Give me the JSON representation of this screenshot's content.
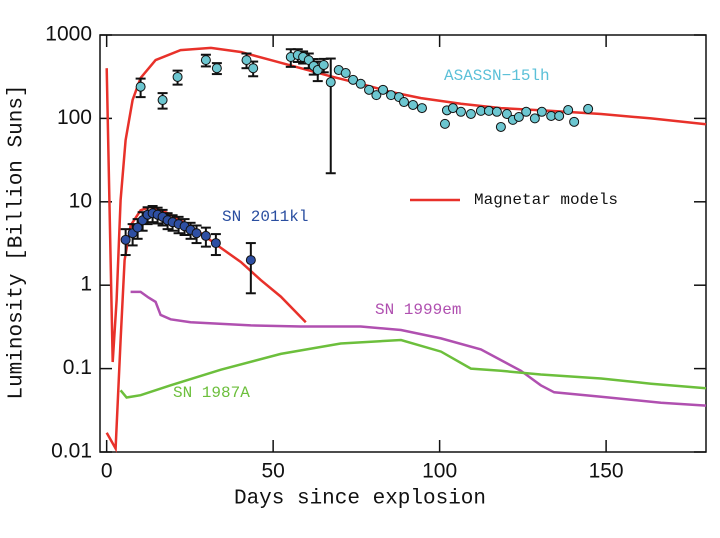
{
  "chart_data": {
    "type": "line",
    "x_label": "Days since explosion",
    "y_label": "Luminosity [Billion Suns]",
    "xlim": [
      -2,
      180
    ],
    "xticks": [
      0,
      50,
      100,
      150
    ],
    "ylim": [
      0.01,
      1000
    ],
    "yticks": [
      1000,
      100,
      10,
      1,
      0.1,
      0.01
    ],
    "log_y": true,
    "series": [
      {
        "name": "Magnetar models",
        "type": "line",
        "color": "#e8312a",
        "x": [
          0,
          1.8,
          3,
          4.2,
          5.7,
          7.8,
          10.2,
          14.7,
          22.2,
          31.3,
          40.3,
          49.3,
          58.3,
          67.3,
          76.3,
          85.4,
          94.4,
          106.4,
          118.4,
          133.5,
          148.5,
          163.5,
          180,
          null,
          0,
          2.7,
          4.2,
          5.4,
          7.2,
          10.2,
          13.2,
          17.7,
          22.2,
          28.3,
          34.3,
          40.3,
          46.3,
          52.3,
          59.8
        ],
        "values": [
          400,
          0.12,
          0.66,
          10.5,
          55,
          166,
          305,
          500,
          660,
          700,
          625,
          500,
          400,
          320,
          260,
          207,
          175,
          150,
          133,
          123,
          113,
          100,
          85,
          null,
          0.017,
          0.011,
          0.22,
          2.0,
          5.2,
          7.9,
          8.7,
          7.5,
          6.0,
          4.2,
          2.8,
          1.9,
          1.15,
          0.73,
          0.36
        ]
      },
      {
        "name": "ASASSN−15lh",
        "type": "scatter",
        "color": "#6cc6d0",
        "label_color": "#5bc0d8",
        "x": [
          10.2,
          16.8,
          21.3,
          29.8,
          33.1,
          42,
          44,
          55.3,
          57.4,
          59,
          60.7,
          62.2,
          63.4,
          65.2,
          67.3,
          69.7,
          71.8,
          74,
          76.3,
          78.8,
          81,
          83,
          85.4,
          87.8,
          89.3,
          92,
          94.7,
          101.6,
          102.2,
          104,
          106.4,
          109.4,
          112.4,
          114.8,
          117.2,
          118.4,
          120.2,
          122,
          123.8,
          126,
          128.6,
          130.7,
          133.5,
          135.9,
          138.6,
          140.4,
          144.6
        ],
        "values": [
          240,
          166,
          314,
          500,
          400,
          500,
          400,
          545,
          575,
          545,
          500,
          425,
          380,
          437,
          272,
          380,
          350,
          290,
          260,
          220,
          190,
          220,
          190,
          180,
          157,
          145,
          133,
          86,
          125,
          133,
          120,
          113,
          123,
          123,
          120,
          79,
          113,
          96,
          104,
          120,
          100,
          120,
          107,
          107,
          126,
          91,
          130
        ],
        "errors": [
          60,
          35,
          60,
          80,
          60,
          100,
          80,
          130,
          100,
          90,
          100,
          90,
          100,
          80,
          250,
          null,
          null,
          null,
          null,
          null,
          null,
          null,
          null,
          null,
          null,
          null,
          null,
          null,
          null,
          null,
          null,
          null,
          null,
          null,
          null,
          null,
          null,
          null,
          null,
          null,
          null,
          null,
          null,
          null,
          null,
          null,
          null
        ]
      },
      {
        "name": "SN 2011kl",
        "type": "scatter",
        "color": "#2e4fa3",
        "label_color": "#2a4ea0",
        "x": [
          5.7,
          7.8,
          9.3,
          10.8,
          12.3,
          13.8,
          15.3,
          16.8,
          18.3,
          19.8,
          21.6,
          23.4,
          25.2,
          27,
          29.8,
          32.8,
          43.3
        ],
        "values": [
          3.5,
          4.2,
          4.9,
          6.0,
          7.0,
          7.3,
          7.0,
          6.6,
          6.0,
          5.7,
          5.4,
          5.1,
          4.6,
          4.2,
          3.9,
          3.2,
          2.0
        ],
        "errors": [
          1.2,
          1.2,
          1.3,
          1.5,
          1.6,
          1.6,
          1.5,
          1.4,
          1.3,
          1.2,
          1.2,
          1.1,
          1.0,
          1.0,
          1.0,
          0.9,
          1.2
        ]
      },
      {
        "name": "SN 1999em",
        "type": "line",
        "color": "#b050b0",
        "x": [
          7.2,
          10.2,
          12.6,
          14.7,
          16.2,
          19.2,
          25.2,
          43.3,
          58.3,
          76.3,
          88.4,
          100.4,
          112.4,
          124.4,
          130.4,
          134.4,
          148.5,
          166.5,
          180
        ],
        "values": [
          0.83,
          0.83,
          0.71,
          0.63,
          0.44,
          0.39,
          0.36,
          0.33,
          0.32,
          0.32,
          0.29,
          0.23,
          0.17,
          0.094,
          0.063,
          0.052,
          0.046,
          0.039,
          0.036
        ]
      },
      {
        "name": "SN 1987A",
        "type": "line",
        "color": "#6cbf3c",
        "x": [
          4.2,
          6,
          10.2,
          19.2,
          34.3,
          52.3,
          70.3,
          88.4,
          100.4,
          109.4,
          118.4,
          130.4,
          148.5,
          163.5,
          180
        ],
        "values": [
          0.055,
          0.045,
          0.048,
          0.063,
          0.097,
          0.15,
          0.2,
          0.22,
          0.16,
          0.1,
          0.094,
          0.085,
          0.076,
          0.066,
          0.058
        ]
      }
    ]
  }
}
